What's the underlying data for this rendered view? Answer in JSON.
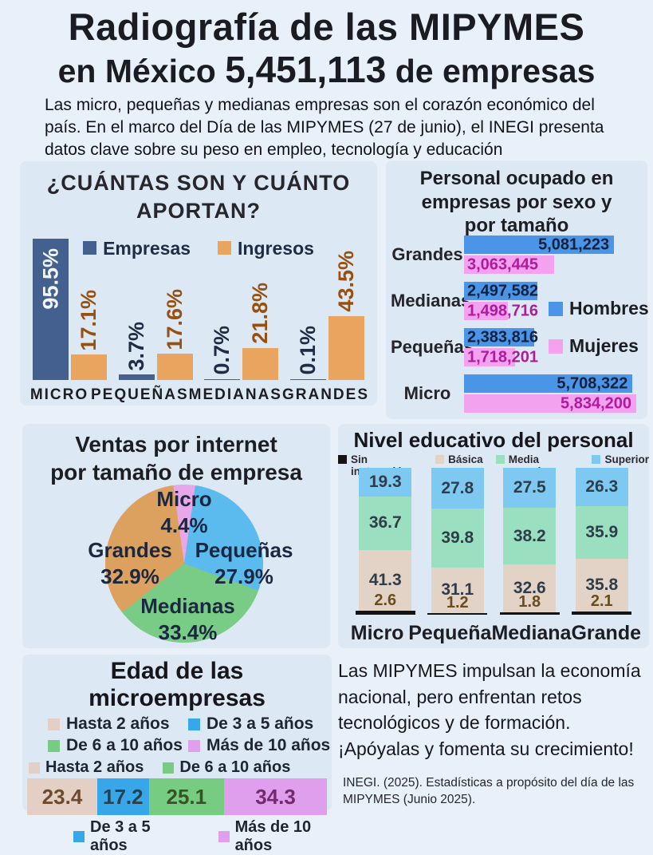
{
  "header": {
    "title_line1": "Radiografía de las MIPYMES",
    "title_line2_prefix": "en México ",
    "title_line2_number": "5,451,113",
    "title_line2_suffix": " de empresas",
    "subtitle": "Las micro, pequeñas y medianas empresas son el corazón económico del país. En el marco del Día de las MIPYMES (27 de junio), el INEGI presenta datos clave sobre su peso en empleo, tecnología y educación"
  },
  "note": {
    "text": "Las MIPYMES impulsan la economía nacional, pero enfrentan retos tecnológicos y de formación.",
    "cta": "¡Apóyalas y fomenta su crecimiento!",
    "source": "INEGI. (2025). Estadísticas a propósito del día de las MIPYMES (Junio 2025)."
  },
  "chart_data": [
    {
      "id": "cuantas",
      "type": "bar",
      "title": "¿CUÁNTAS SON Y CUÁNTO APORTAN?",
      "categories": [
        "MICRO",
        "PEQUEÑAS",
        "MEDIANAS",
        "GRANDES"
      ],
      "series": [
        {
          "name": "Empresas",
          "color": "#44608f",
          "label_color": "#1f2c45",
          "values": [
            95.5,
            3.7,
            0.7,
            0.1
          ],
          "labels": [
            "95.5%",
            "3.7%",
            "0.7%",
            "0.1%"
          ]
        },
        {
          "name": "Ingresos",
          "color": "#e9a55f",
          "label_color": "#97500f",
          "values": [
            17.1,
            17.6,
            21.8,
            43.5
          ],
          "labels": [
            "17.1%",
            "17.6%",
            "21.8%",
            "43.5%"
          ]
        }
      ],
      "unit": "%",
      "ylim": [
        0,
        100
      ],
      "inside_label": {
        "series": 0,
        "index": 0
      }
    },
    {
      "id": "personal",
      "type": "bar-horizontal",
      "title_lines": [
        "Personal ocupado en",
        "empresas por sexo y",
        "por tamaño"
      ],
      "categories": [
        "Grandes",
        "Medianas",
        "Pequeñas",
        "Micro"
      ],
      "series": [
        {
          "name": "Hombres",
          "color": "#4b95e8",
          "text_color": "#14213d",
          "values": [
            5081223,
            2497582,
            2383816,
            5708322
          ],
          "labels": [
            "5,081,223",
            "2,497,582",
            "2,383,816",
            "5,708,322"
          ]
        },
        {
          "name": "Mujeres",
          "color": "#f2a2ee",
          "text_color": "#b01a9b",
          "values": [
            3063445,
            1498716,
            1718201,
            5834200
          ],
          "labels": [
            "3,063,445",
            "1,498,716",
            "1,718,201",
            "5,834,200"
          ]
        }
      ],
      "xmax": 5834200,
      "legend_position": "middle-right"
    },
    {
      "id": "ventas-internet",
      "type": "pie",
      "title_line1": "Ventas por internet",
      "title_line2": "por tamaño  de empresa",
      "start_angle_deg": -8,
      "slices": [
        {
          "label": "Micro",
          "value": 4.4,
          "pct_label": "4.4%",
          "color": "#e7a7e9"
        },
        {
          "label": "Pequeñas",
          "value": 27.9,
          "pct_label": "27.9%",
          "color": "#5bbaee"
        },
        {
          "label": "Medianas",
          "value": 33.4,
          "pct_label": "33.4%",
          "color": "#79cc86"
        },
        {
          "label": "Grandes",
          "value": 32.9,
          "pct_label": "32.9%",
          "color": "#dda15f"
        }
      ]
    },
    {
      "id": "nivel-educativo",
      "type": "stacked-bar",
      "title": "Nivel educativo del personal",
      "categories": [
        "Micro",
        "Pequeña",
        "Mediana",
        "Grande"
      ],
      "segments": [
        {
          "name": "Sin instrucción",
          "color": "#141414",
          "values": [
            2.6,
            1.2,
            1.8,
            2.1
          ]
        },
        {
          "name": "Básica",
          "color": "#e3d2c6",
          "values": [
            41.3,
            31.1,
            32.6,
            35.8
          ]
        },
        {
          "name": "Media superior",
          "color": "#9adfc0",
          "values": [
            36.7,
            39.8,
            38.2,
            35.9
          ]
        },
        {
          "name": "Superior",
          "color": "#7ec9f2",
          "values": [
            19.3,
            27.8,
            27.5,
            26.3
          ]
        }
      ],
      "ylim": [
        0,
        100
      ]
    },
    {
      "id": "edad-microempresas",
      "type": "stacked-bar-horizontal",
      "title": "Edad de las microempresas",
      "segments": [
        {
          "name": "Hasta 2 años",
          "color": "#e3cfc3",
          "value": 23.4,
          "label": "23.4",
          "text_color": "#6f4b2e"
        },
        {
          "name": "De 3 a 5 años",
          "color": "#38a7e9",
          "value": 17.2,
          "label": "17.2",
          "text_color": "#29404e"
        },
        {
          "name": "De 6 a 10 años",
          "color": "#76cc80",
          "value": 25.1,
          "label": "25.1",
          "text_color": "#375426"
        },
        {
          "name": "Más de 10 años",
          "color": "#df9fec",
          "value": 34.3,
          "label": "34.3",
          "text_color": "#752a6e"
        }
      ],
      "xlim": [
        0,
        100
      ]
    }
  ]
}
